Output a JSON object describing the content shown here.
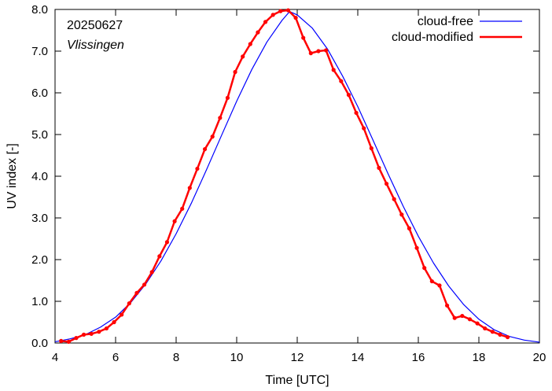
{
  "chart_data": {
    "type": "line",
    "xlabel": "Time  [UTC]",
    "ylabel": "UV index  [-]",
    "xlim": [
      4,
      20
    ],
    "ylim": [
      0,
      8
    ],
    "x_ticks": [
      4,
      6,
      8,
      10,
      12,
      14,
      16,
      18,
      20
    ],
    "x_tick_labels": [
      "4",
      "6",
      "8",
      "10",
      "12",
      "14",
      "16",
      "18",
      "20"
    ],
    "y_ticks": [
      0,
      1,
      2,
      3,
      4,
      5,
      6,
      7,
      8
    ],
    "y_tick_labels": [
      "0.0",
      "1.0",
      "2.0",
      "3.0",
      "4.0",
      "5.0",
      "6.0",
      "7.0",
      "8.0"
    ],
    "annotations": [
      "20250627",
      "Vlissingen"
    ],
    "grid": false,
    "legend_position": "top-right",
    "series": [
      {
        "name": "cloud-free",
        "color": "#0000ff",
        "markers": false,
        "x": [
          4.0,
          4.5,
          5.0,
          5.5,
          6.0,
          6.5,
          7.0,
          7.5,
          8.0,
          8.5,
          9.0,
          9.5,
          10.0,
          10.5,
          11.0,
          11.5,
          11.75,
          12.0,
          12.5,
          13.0,
          13.5,
          14.0,
          14.5,
          15.0,
          15.5,
          16.0,
          16.5,
          17.0,
          17.5,
          18.0,
          18.5,
          19.0,
          19.5,
          20.0
        ],
        "y": [
          0.03,
          0.1,
          0.2,
          0.38,
          0.62,
          0.97,
          1.42,
          1.97,
          2.62,
          3.35,
          4.15,
          4.98,
          5.8,
          6.56,
          7.22,
          7.74,
          7.95,
          7.87,
          7.55,
          7.05,
          6.4,
          5.67,
          4.87,
          4.06,
          3.28,
          2.56,
          1.92,
          1.37,
          0.92,
          0.57,
          0.32,
          0.16,
          0.07,
          0.02
        ]
      },
      {
        "name": "cloud-modified",
        "color": "#ff0000",
        "markers": true,
        "x": [
          4.2,
          4.45,
          4.7,
          4.95,
          5.2,
          5.45,
          5.7,
          5.95,
          6.2,
          6.45,
          6.7,
          6.95,
          7.2,
          7.45,
          7.7,
          7.95,
          8.2,
          8.45,
          8.7,
          8.95,
          9.2,
          9.45,
          9.7,
          9.95,
          10.2,
          10.45,
          10.7,
          10.95,
          11.2,
          11.45,
          11.7,
          11.95,
          12.2,
          12.45,
          12.7,
          12.95,
          13.2,
          13.45,
          13.7,
          13.95,
          14.2,
          14.45,
          14.7,
          14.95,
          15.2,
          15.45,
          15.7,
          15.95,
          16.2,
          16.45,
          16.7,
          16.95,
          17.2,
          17.45,
          17.7,
          17.95,
          18.2,
          18.45,
          18.7,
          18.95
        ],
        "y": [
          0.05,
          0.03,
          0.12,
          0.2,
          0.22,
          0.27,
          0.35,
          0.5,
          0.68,
          0.95,
          1.2,
          1.4,
          1.7,
          2.08,
          2.42,
          2.92,
          3.22,
          3.72,
          4.18,
          4.65,
          4.95,
          5.4,
          5.88,
          6.5,
          6.87,
          7.17,
          7.45,
          7.7,
          7.87,
          7.96,
          7.98,
          7.8,
          7.32,
          6.95,
          7.0,
          7.02,
          6.55,
          6.28,
          5.95,
          5.52,
          5.15,
          4.67,
          4.2,
          3.82,
          3.45,
          3.08,
          2.75,
          2.28,
          1.8,
          1.48,
          1.38,
          0.9,
          0.6,
          0.65,
          0.57,
          0.47,
          0.35,
          0.27,
          0.2,
          0.14
        ]
      }
    ]
  }
}
